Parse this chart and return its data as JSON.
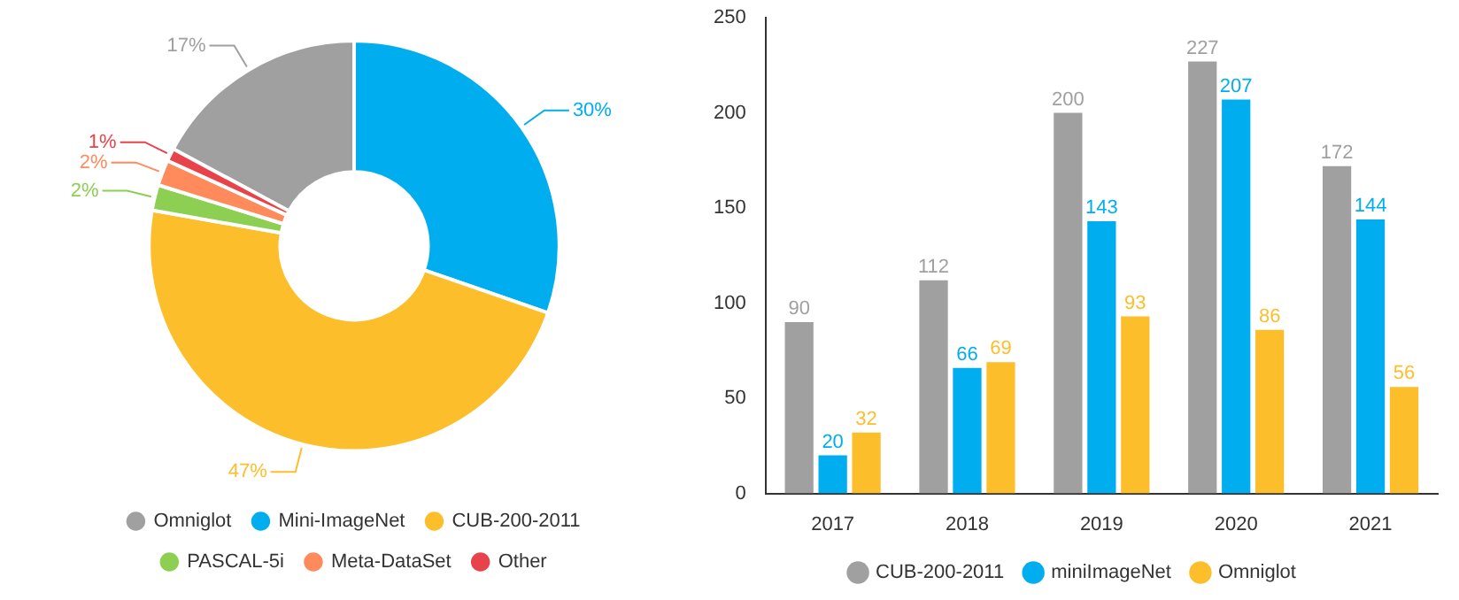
{
  "chart_data": [
    {
      "type": "donut",
      "categories": [
        "Omniglot",
        "Mini-ImageNet",
        "CUB-200-2011",
        "PASCAL-5i",
        "Meta-DataSet",
        "Other"
      ],
      "values": [
        17,
        30,
        47,
        2,
        2,
        1
      ],
      "colors": [
        "#a0a0a0",
        "#00aeef",
        "#fdbe2c",
        "#8ccf52",
        "#ff8a5c",
        "#e8424a"
      ],
      "value_labels": [
        "17%",
        "30%",
        "47%",
        "2%",
        "2%",
        "1%"
      ],
      "legend": "bottom"
    },
    {
      "type": "bar",
      "categories": [
        "2017",
        "2018",
        "2019",
        "2020",
        "2021"
      ],
      "series": [
        {
          "name": "CUB-200-2011",
          "color": "#a0a0a0",
          "values": [
            90,
            112,
            200,
            227,
            172
          ]
        },
        {
          "name": "miniImageNet",
          "color": "#00aeef",
          "values": [
            20,
            66,
            143,
            207,
            144
          ]
        },
        {
          "name": "Omniglot",
          "color": "#fdbe2c",
          "values": [
            32,
            69,
            93,
            86,
            56
          ]
        }
      ],
      "ylim": [
        0,
        250
      ],
      "yticks": [
        0,
        50,
        100,
        150,
        200,
        250
      ],
      "grid": false,
      "data_labels": true,
      "legend": "bottom"
    }
  ]
}
